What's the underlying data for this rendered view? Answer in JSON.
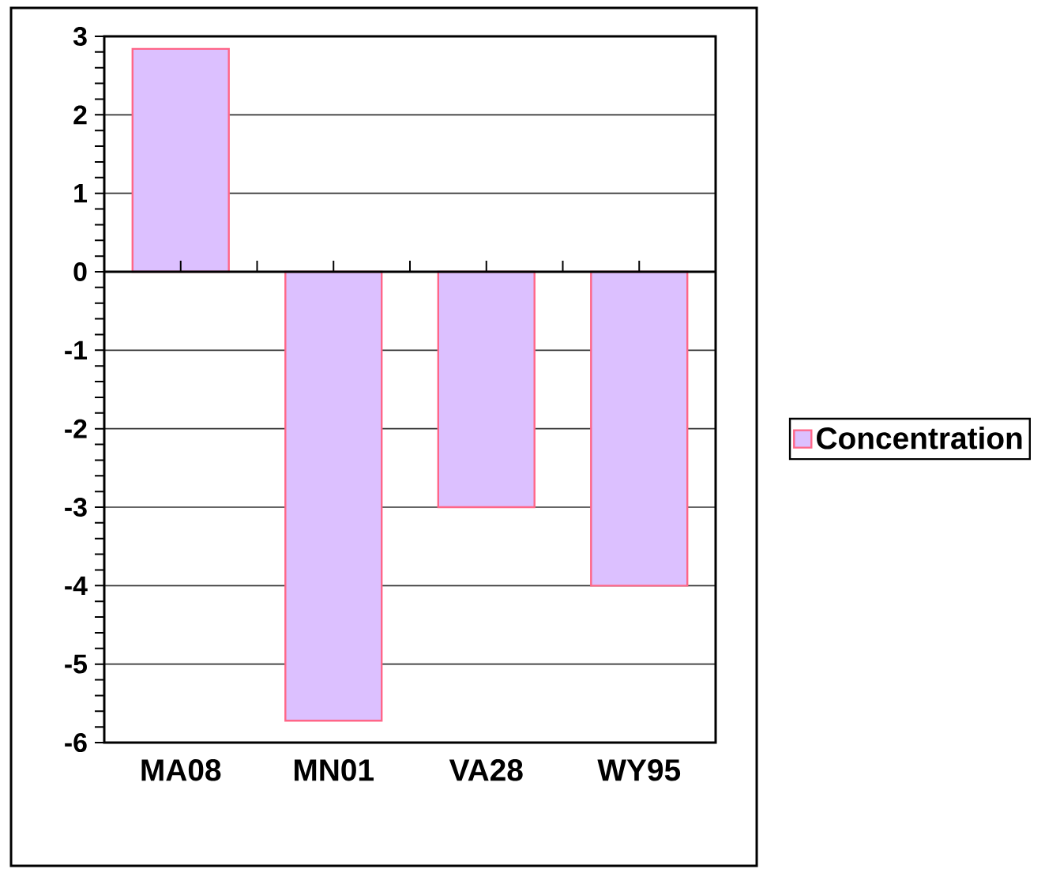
{
  "chart_data": {
    "type": "bar",
    "categories": [
      "MA08",
      "MN01",
      "VA28",
      "WY95"
    ],
    "series": [
      {
        "name": "Concentration",
        "color": "#dcc0ff",
        "values": [
          2.84,
          -5.72,
          -3.0,
          -4.0
        ]
      }
    ],
    "ylim": [
      -6,
      3
    ],
    "yticks": [
      -6,
      -5,
      -4,
      -3,
      -2,
      -1,
      0,
      1,
      2,
      3
    ],
    "grid": "y",
    "legend": "right"
  }
}
